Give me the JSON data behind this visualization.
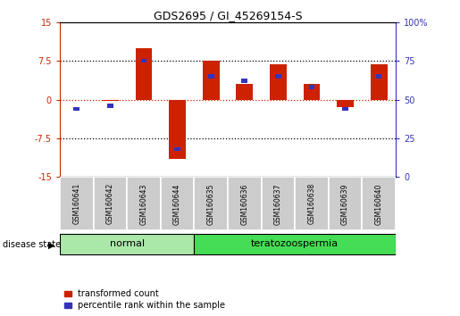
{
  "title": "GDS2695 / GI_45269154-S",
  "samples": [
    "GSM160641",
    "GSM160642",
    "GSM160643",
    "GSM160644",
    "GSM160635",
    "GSM160636",
    "GSM160637",
    "GSM160638",
    "GSM160639",
    "GSM160640"
  ],
  "groups": [
    {
      "label": "normal",
      "color": "#90ee90",
      "count": 4
    },
    {
      "label": "teratozoospermia",
      "color": "#44dd55",
      "count": 6
    }
  ],
  "red_values": [
    0.0,
    -0.3,
    10.0,
    -11.5,
    7.5,
    3.0,
    6.8,
    3.0,
    -1.5,
    6.8
  ],
  "blue_values_pct": [
    44,
    46,
    75,
    18,
    65,
    62,
    65,
    58,
    44,
    65
  ],
  "ylim_left": [
    -15,
    15
  ],
  "ylim_right": [
    0,
    100
  ],
  "yticks_left": [
    -15,
    -7.5,
    0,
    7.5,
    15
  ],
  "yticks_right": [
    0,
    25,
    50,
    75,
    100
  ],
  "ytick_labels_left": [
    "-15",
    "-7.5",
    "0",
    "7.5",
    "15"
  ],
  "ytick_labels_right": [
    "0",
    "25",
    "50",
    "75",
    "100%"
  ],
  "hlines_black": [
    7.5,
    -7.5
  ],
  "red_color": "#cc2200",
  "blue_color": "#3333bb",
  "red_bar_width": 0.5,
  "blue_bar_width": 0.18,
  "disease_state_label": "disease state",
  "legend_red": "transformed count",
  "legend_blue": "percentile rank within the sample",
  "normal_color": "#aae8aa",
  "terato_color": "#44dd55",
  "sample_box_color": "#cccccc"
}
